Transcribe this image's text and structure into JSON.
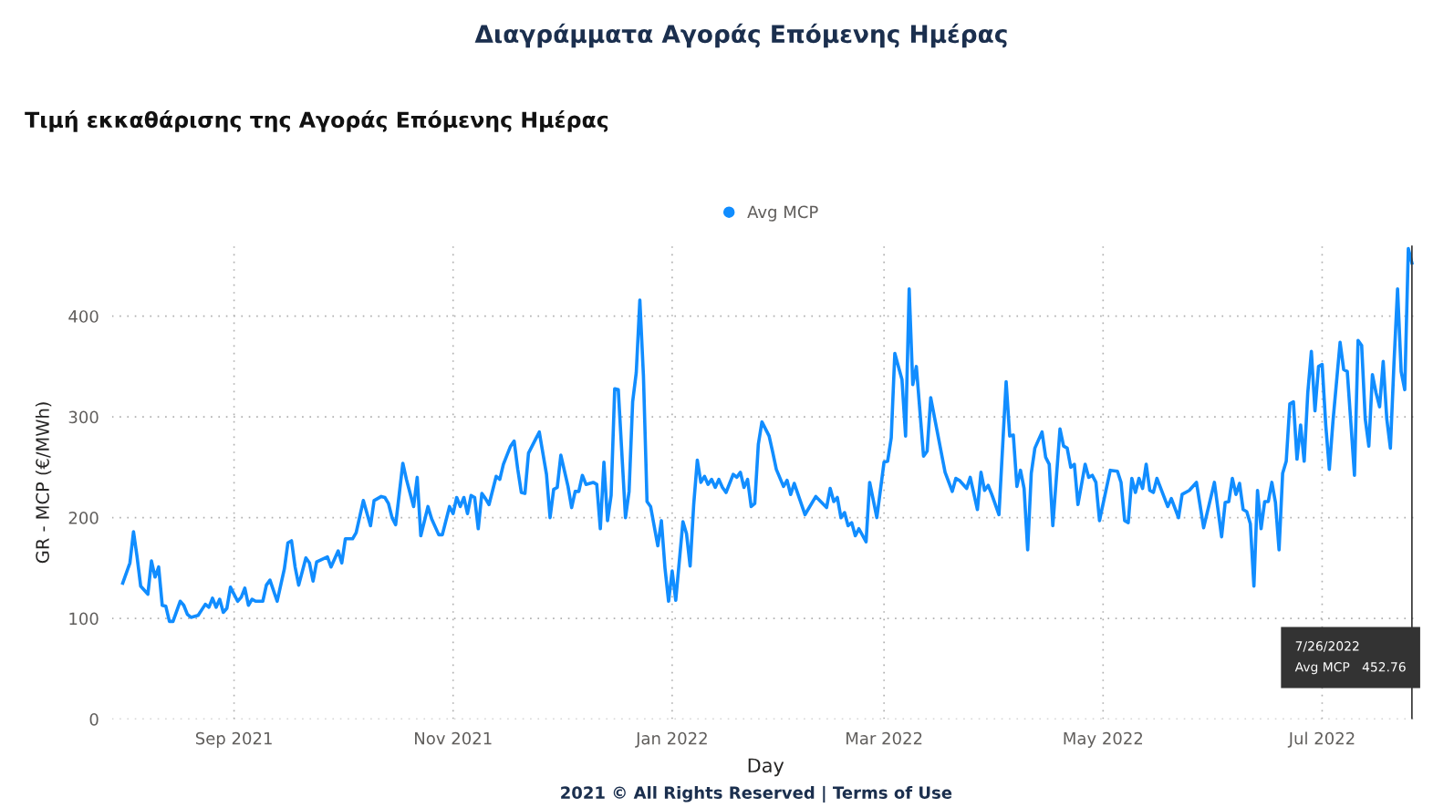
{
  "chart_data": {
    "type": "line",
    "title": "Διαγράμματα Αγοράς Επόμενης Ημέρας",
    "subtitle": "Τιμή εκκαθάρισης της Αγοράς Επόμενης Ημέρας",
    "xlabel": "Day",
    "ylabel": "GR - MCP (€/MWh)",
    "series": [
      {
        "name": "Avg MCP",
        "color": "#118dff",
        "x": [
          "2021-08-01",
          "2021-08-03",
          "2021-08-04",
          "2021-08-05",
          "2021-08-06",
          "2021-08-08",
          "2021-08-09",
          "2021-08-10",
          "2021-08-11",
          "2021-08-12",
          "2021-08-13",
          "2021-08-14",
          "2021-08-15",
          "2021-08-17",
          "2021-08-18",
          "2021-08-19",
          "2021-08-20",
          "2021-08-22",
          "2021-08-24",
          "2021-08-25",
          "2021-08-26",
          "2021-08-27",
          "2021-08-28",
          "2021-08-29",
          "2021-08-30",
          "2021-08-31",
          "2021-09-02",
          "2021-09-03",
          "2021-09-04",
          "2021-09-05",
          "2021-09-06",
          "2021-09-07",
          "2021-09-09",
          "2021-09-10",
          "2021-09-11",
          "2021-09-13",
          "2021-09-15",
          "2021-09-16",
          "2021-09-17",
          "2021-09-18",
          "2021-09-19",
          "2021-09-21",
          "2021-09-22",
          "2021-09-23",
          "2021-09-24",
          "2021-09-27",
          "2021-09-28",
          "2021-09-30",
          "2021-10-01",
          "2021-10-02",
          "2021-10-04",
          "2021-10-05",
          "2021-10-07",
          "2021-10-09",
          "2021-10-10",
          "2021-10-12",
          "2021-10-13",
          "2021-10-14",
          "2021-10-15",
          "2021-10-16",
          "2021-10-18",
          "2021-10-19",
          "2021-10-21",
          "2021-10-22",
          "2021-10-23",
          "2021-10-25",
          "2021-10-26",
          "2021-10-28",
          "2021-10-29",
          "2021-10-31",
          "2021-11-01",
          "2021-11-02",
          "2021-11-03",
          "2021-11-04",
          "2021-11-05",
          "2021-11-06",
          "2021-11-07",
          "2021-11-08",
          "2021-11-09",
          "2021-11-10",
          "2021-11-11",
          "2021-11-13",
          "2021-11-14",
          "2021-11-15",
          "2021-11-17",
          "2021-11-18",
          "2021-11-19",
          "2021-11-20",
          "2021-11-21",
          "2021-11-22",
          "2021-11-24",
          "2021-11-25",
          "2021-11-27",
          "2021-11-28",
          "2021-11-29",
          "2021-11-30",
          "2021-12-01",
          "2021-12-03",
          "2021-12-04",
          "2021-12-05",
          "2021-12-06",
          "2021-12-07",
          "2021-12-08",
          "2021-12-10",
          "2021-12-11",
          "2021-12-12",
          "2021-12-13",
          "2021-12-14",
          "2021-12-15",
          "2021-12-16",
          "2021-12-17",
          "2021-12-19",
          "2021-12-20",
          "2021-12-21",
          "2021-12-22",
          "2021-12-23",
          "2021-12-24",
          "2021-12-25",
          "2021-12-26",
          "2021-12-28",
          "2021-12-29",
          "2021-12-30",
          "2021-12-31",
          "2022-01-01",
          "2022-01-02",
          "2022-01-04",
          "2022-01-05",
          "2022-01-06",
          "2022-01-07",
          "2022-01-08",
          "2022-01-09",
          "2022-01-10",
          "2022-01-11",
          "2022-01-12",
          "2022-01-13",
          "2022-01-14",
          "2022-01-15",
          "2022-01-16",
          "2022-01-18",
          "2022-01-19",
          "2022-01-20",
          "2022-01-21",
          "2022-01-22",
          "2022-01-23",
          "2022-01-24",
          "2022-01-25",
          "2022-01-26",
          "2022-01-28",
          "2022-01-29",
          "2022-01-30",
          "2022-02-01",
          "2022-02-02",
          "2022-02-03",
          "2022-02-04",
          "2022-02-07",
          "2022-02-10",
          "2022-02-13",
          "2022-02-14",
          "2022-02-15",
          "2022-02-16",
          "2022-02-17",
          "2022-02-18",
          "2022-02-19",
          "2022-02-20",
          "2022-02-21",
          "2022-02-22",
          "2022-02-24",
          "2022-02-25",
          "2022-02-27",
          "2022-03-01",
          "2022-03-02",
          "2022-03-03",
          "2022-03-04",
          "2022-03-06",
          "2022-03-07",
          "2022-03-08",
          "2022-03-09",
          "2022-03-10",
          "2022-03-12",
          "2022-03-13",
          "2022-03-14",
          "2022-03-18",
          "2022-03-20",
          "2022-03-21",
          "2022-03-22",
          "2022-03-24",
          "2022-03-25",
          "2022-03-27",
          "2022-03-28",
          "2022-03-29",
          "2022-03-30",
          "2022-03-31",
          "2022-04-02",
          "2022-04-04",
          "2022-04-05",
          "2022-04-06",
          "2022-04-07",
          "2022-04-08",
          "2022-04-09",
          "2022-04-10",
          "2022-04-11",
          "2022-04-12",
          "2022-04-14",
          "2022-04-15",
          "2022-04-16",
          "2022-04-17",
          "2022-04-19",
          "2022-04-20",
          "2022-04-21",
          "2022-04-22",
          "2022-04-23",
          "2022-04-24",
          "2022-04-26",
          "2022-04-27",
          "2022-04-28",
          "2022-04-29",
          "2022-04-30",
          "2022-05-03",
          "2022-05-05",
          "2022-05-06",
          "2022-05-07",
          "2022-05-08",
          "2022-05-09",
          "2022-05-10",
          "2022-05-11",
          "2022-05-12",
          "2022-05-13",
          "2022-05-14",
          "2022-05-15",
          "2022-05-16",
          "2022-05-19",
          "2022-05-20",
          "2022-05-22",
          "2022-05-23",
          "2022-05-25",
          "2022-05-27",
          "2022-05-29",
          "2022-06-01",
          "2022-06-03",
          "2022-06-04",
          "2022-06-05",
          "2022-06-06",
          "2022-06-07",
          "2022-06-08",
          "2022-06-09",
          "2022-06-10",
          "2022-06-11",
          "2022-06-12",
          "2022-06-13",
          "2022-06-14",
          "2022-06-15",
          "2022-06-16",
          "2022-06-17",
          "2022-06-18",
          "2022-06-19",
          "2022-06-20",
          "2022-06-21",
          "2022-06-22",
          "2022-06-23",
          "2022-06-24",
          "2022-06-25",
          "2022-06-26",
          "2022-06-27",
          "2022-06-28",
          "2022-06-29",
          "2022-06-30",
          "2022-07-01",
          "2022-07-02",
          "2022-07-03",
          "2022-07-04",
          "2022-07-06",
          "2022-07-07",
          "2022-07-08",
          "2022-07-09",
          "2022-07-10",
          "2022-07-11",
          "2022-07-12",
          "2022-07-13",
          "2022-07-14",
          "2022-07-15",
          "2022-07-16",
          "2022-07-17",
          "2022-07-18",
          "2022-07-19",
          "2022-07-20",
          "2022-07-21",
          "2022-07-22",
          "2022-07-23",
          "2022-07-24",
          "2022-07-25",
          "2022-07-26"
        ],
        "values": [
          135,
          155,
          186,
          161,
          132,
          124,
          157,
          141,
          151,
          113,
          112,
          97,
          97,
          117,
          113,
          104,
          101,
          103,
          114,
          111,
          120,
          111,
          119,
          106,
          110,
          131,
          117,
          121,
          130,
          113,
          119,
          117,
          117,
          133,
          138,
          117,
          149,
          175,
          177,
          151,
          133,
          160,
          155,
          137,
          156,
          161,
          151,
          167,
          155,
          179,
          179,
          185,
          217,
          192,
          217,
          221,
          220,
          214,
          200,
          193,
          254,
          238,
          211,
          240,
          182,
          211,
          199,
          183,
          183,
          211,
          204,
          220,
          211,
          220,
          204,
          222,
          220,
          189,
          224,
          219,
          213,
          241,
          238,
          253,
          271,
          276,
          248,
          225,
          224,
          264,
          278,
          285,
          243,
          200,
          228,
          230,
          262,
          231,
          210,
          226,
          226,
          242,
          233,
          235,
          233,
          189,
          255,
          197,
          222,
          328,
          327,
          200,
          226,
          315,
          344,
          416,
          341,
          216,
          211,
          172,
          197,
          150,
          117,
          147,
          118,
          196,
          184,
          152,
          213,
          257,
          235,
          241,
          233,
          238,
          230,
          238,
          230,
          225,
          243,
          240,
          245,
          230,
          238,
          211,
          214,
          273,
          295,
          281,
          265,
          248,
          231,
          237,
          223,
          234,
          203,
          221,
          210,
          229,
          216,
          220,
          200,
          205,
          192,
          195,
          182,
          189,
          176,
          235,
          200,
          255,
          256,
          279,
          363,
          337,
          281,
          427,
          332,
          350,
          261,
          266,
          319,
          245,
          226,
          239,
          237,
          229,
          240,
          208,
          245,
          227,
          232,
          223,
          203,
          335,
          281,
          282,
          231,
          247,
          229,
          168,
          244,
          269,
          285,
          260,
          253,
          192,
          288,
          271,
          269,
          250,
          253,
          213,
          253,
          240,
          242,
          235,
          197,
          247,
          246,
          235,
          197,
          195,
          239,
          225,
          239,
          229,
          253,
          227,
          225,
          239,
          211,
          219,
          200,
          223,
          227,
          235,
          190,
          235,
          181,
          215,
          216,
          239,
          223,
          234,
          208,
          206,
          194,
          132,
          227,
          189,
          216,
          216,
          235,
          215,
          168,
          244,
          256,
          313,
          315,
          258,
          292,
          256,
          324,
          365,
          306,
          350,
          352,
          292,
          248,
          295,
          374,
          347,
          345,
          294,
          242,
          376,
          371,
          298,
          271,
          342,
          324,
          310,
          355,
          298,
          269,
          353,
          427,
          345,
          327,
          467,
          452.76
        ]
      }
    ],
    "xlim": [
      "2021-07-29",
      "2022-07-28"
    ],
    "xticks": [
      {
        "value": "2021-09-01",
        "label": "Sep 2021"
      },
      {
        "value": "2021-11-01",
        "label": "Nov 2021"
      },
      {
        "value": "2022-01-01",
        "label": "Jan 2022"
      },
      {
        "value": "2022-03-01",
        "label": "Mar 2022"
      },
      {
        "value": "2022-05-01",
        "label": "May 2022"
      },
      {
        "value": "2022-07-01",
        "label": "Jul 2022"
      }
    ],
    "ylim": [
      0,
      470
    ],
    "yticks": [
      0,
      100,
      200,
      300,
      400
    ],
    "grid": true,
    "legend": "top",
    "marker": "none",
    "line_style": "solid",
    "ref_lines": [
      {
        "axis": "x",
        "value": "2022-07-26",
        "label": null,
        "color": "#333333"
      }
    ],
    "annotations": [
      "7/26/2022\nAvg MCP   452.76",
      "2021 © All Rights Reserved | Terms of Use"
    ]
  }
}
